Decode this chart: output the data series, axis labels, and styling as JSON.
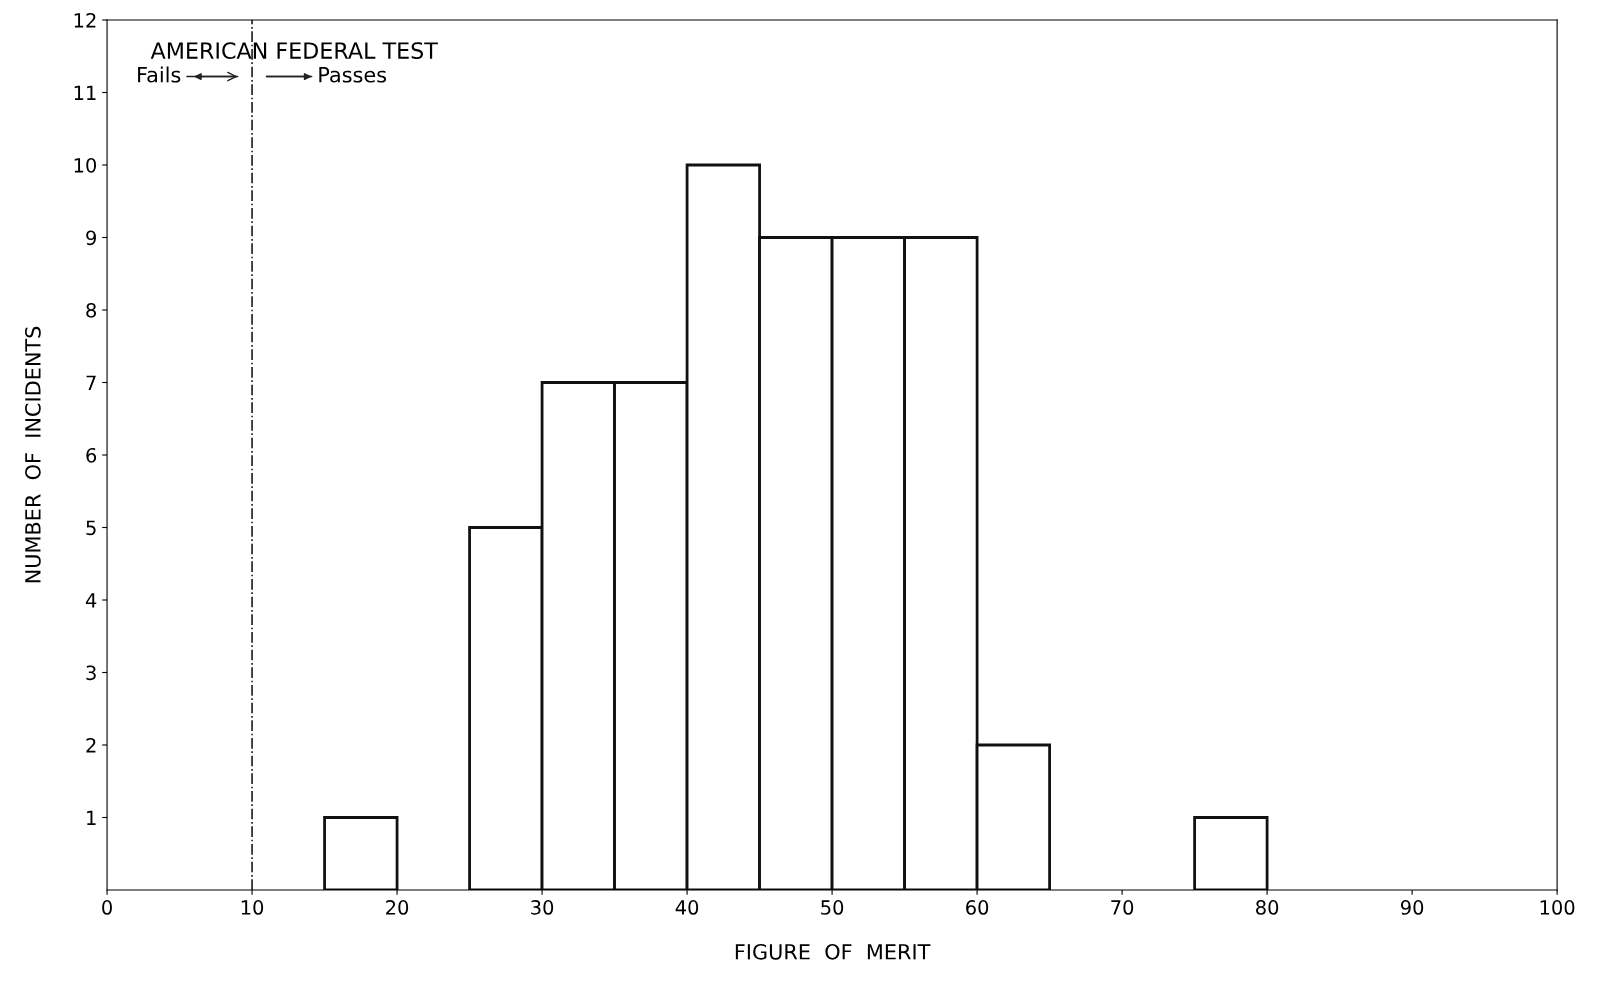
{
  "chart_data": {
    "type": "histogram",
    "title": "AMERICAN FEDERAL TEST",
    "xlabel": "FIGURE  OF  MERIT",
    "ylabel": "NUMBER  OF  INCIDENTS",
    "bins": [
      0,
      5,
      10,
      15,
      20,
      25,
      30,
      35,
      40,
      45,
      50,
      55,
      60,
      65,
      70,
      75,
      80,
      85,
      90,
      95,
      100
    ],
    "values": [
      0,
      0,
      0,
      1,
      0,
      5,
      7,
      7,
      10,
      9,
      9,
      9,
      2,
      0,
      0,
      1,
      0,
      0,
      0,
      0
    ],
    "color": "#ffffff",
    "xlim": [
      0,
      100
    ],
    "xticks": [
      0,
      10,
      20,
      30,
      40,
      50,
      60,
      70,
      80,
      90,
      100
    ],
    "ylim": [
      0,
      12
    ],
    "yticks": [
      1,
      2,
      3,
      4,
      5,
      6,
      7,
      8,
      9,
      10,
      11,
      12
    ],
    "ref_lines": [
      {
        "axis": "x",
        "value": 10,
        "line_style": "dashdot",
        "color": "#222222"
      }
    ],
    "annotations": [
      "Fails",
      "Passes"
    ],
    "grid": false
  }
}
